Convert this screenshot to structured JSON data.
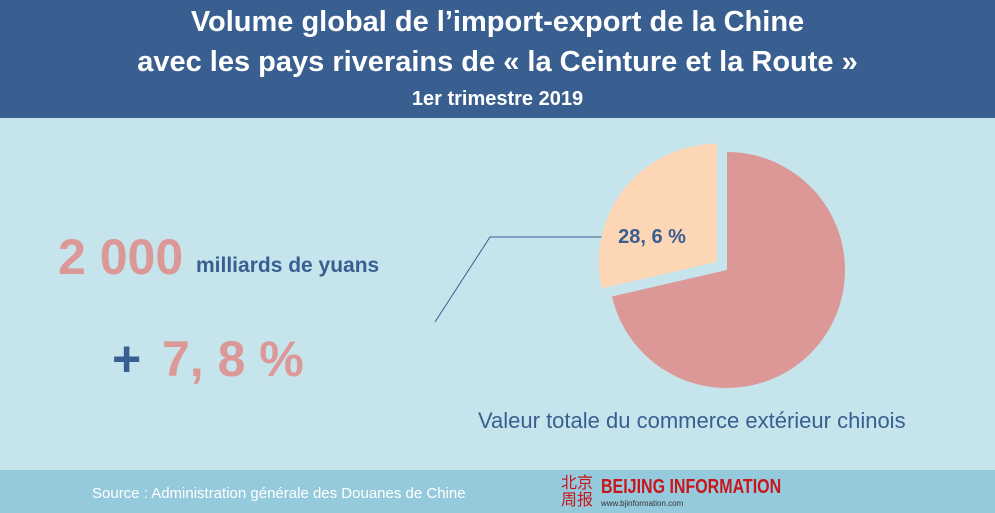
{
  "header": {
    "title_line1": "Volume global de l’import-export de la Chine",
    "title_line2": "avec les pays riverains de « la Ceinture et la Route »",
    "subtitle": "1er trimestre 2019"
  },
  "stats": {
    "amount": "2 000",
    "amount_unit": "milliards de yuans",
    "plus": "+",
    "growth": "7, 8 %"
  },
  "chart_data": {
    "type": "pie",
    "values": [
      28.6,
      71.4
    ],
    "value_labels": [
      "28, 6 %",
      null
    ],
    "colors": [
      "#fdd6b6",
      "#dc9896"
    ],
    "caption": "Valeur totale du commerce extérieur chinois"
  },
  "footer": {
    "source": "Source : Administration générale des Douanes de Chine",
    "logo_chinese": "北京周报",
    "logo_name": "BEIJING INFORMATION",
    "logo_url": "www.bjinformation.com"
  }
}
